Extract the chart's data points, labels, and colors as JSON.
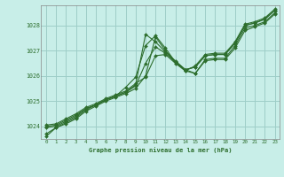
{
  "background_color": "#c8eee8",
  "grid_color": "#9ecec8",
  "line_color": "#2d6e2d",
  "marker_color": "#2d6e2d",
  "title": "Graphe pression niveau de la mer (hPa)",
  "title_color": "#2d6e2d",
  "tick_color": "#2d6e2d",
  "ylim": [
    1023.5,
    1028.8
  ],
  "xlim": [
    -0.5,
    23.5
  ],
  "yticks": [
    1024,
    1025,
    1026,
    1027,
    1028
  ],
  "xticks": [
    0,
    1,
    2,
    3,
    4,
    5,
    6,
    7,
    8,
    9,
    10,
    11,
    12,
    13,
    14,
    15,
    16,
    17,
    18,
    19,
    20,
    21,
    22,
    23
  ],
  "series": [
    [
      1023.7,
      1023.95,
      1024.1,
      1024.3,
      1024.6,
      1024.8,
      1025.0,
      1025.15,
      1025.3,
      1025.5,
      1026.0,
      1027.55,
      1027.0,
      1026.55,
      1026.2,
      1026.1,
      1026.65,
      1026.7,
      1026.7,
      1027.2,
      1027.9,
      1028.0,
      1028.15,
      1028.5
    ],
    [
      1023.95,
      1024.0,
      1024.2,
      1024.4,
      1024.7,
      1024.85,
      1025.05,
      1025.2,
      1025.35,
      1025.65,
      1027.65,
      1027.35,
      1026.95,
      1026.6,
      1026.25,
      1026.35,
      1026.8,
      1026.85,
      1026.85,
      1027.3,
      1028.0,
      1028.1,
      1028.25,
      1028.6
    ],
    [
      1024.0,
      1024.05,
      1024.25,
      1024.45,
      1024.7,
      1024.85,
      1025.05,
      1025.2,
      1025.35,
      1025.6,
      1026.5,
      1027.15,
      1026.9,
      1026.55,
      1026.25,
      1026.35,
      1026.8,
      1026.85,
      1026.85,
      1027.3,
      1028.0,
      1028.1,
      1028.25,
      1028.6
    ],
    [
      1024.05,
      1024.1,
      1024.3,
      1024.5,
      1024.75,
      1024.9,
      1025.1,
      1025.25,
      1025.4,
      1025.7,
      1025.95,
      1026.8,
      1026.85,
      1026.5,
      1026.2,
      1026.4,
      1026.85,
      1026.9,
      1026.9,
      1027.35,
      1028.05,
      1028.15,
      1028.3,
      1028.65
    ],
    [
      1023.6,
      1023.95,
      1024.15,
      1024.35,
      1024.65,
      1024.85,
      1025.05,
      1025.2,
      1025.55,
      1025.95,
      1027.2,
      1027.6,
      1027.1,
      1026.55,
      1026.25,
      1026.1,
      1026.6,
      1026.65,
      1026.65,
      1027.1,
      1027.8,
      1027.95,
      1028.1,
      1028.45
    ]
  ]
}
